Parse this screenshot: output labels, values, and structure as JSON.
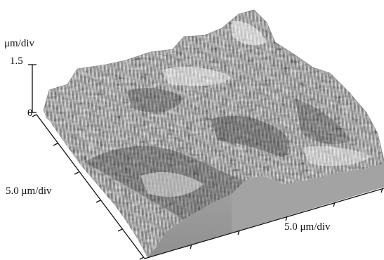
{
  "axes": {
    "z_unit": "μm/div",
    "z_max": "1.5",
    "z_min": "0",
    "x_unit": "5.0 μm/div",
    "y_unit": "5.0 μm/div"
  },
  "colors": {
    "side_fill": "#9a9a9a",
    "surface_dark": "#3a3a3a",
    "surface_mid": "#8c8c8c",
    "surface_light": "#f2f2f2",
    "axis_color": "#111111"
  }
}
